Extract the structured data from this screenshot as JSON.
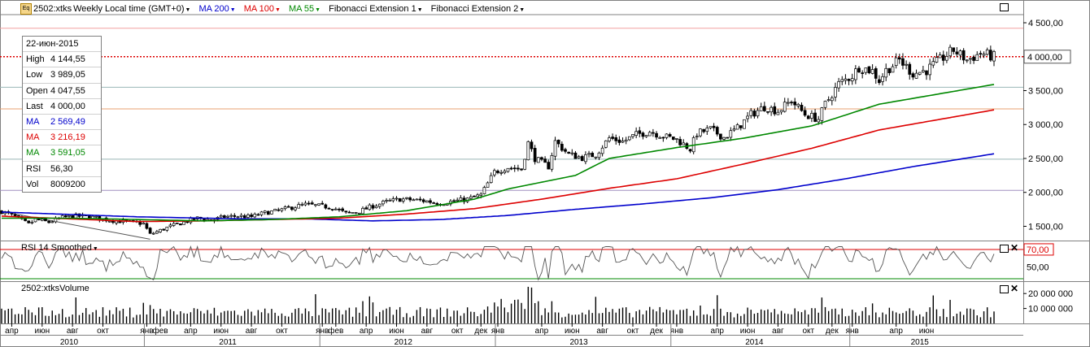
{
  "header": {
    "symbol": "2502:xtks",
    "period": "Weekly",
    "timezone": "Local time (GMT+0)",
    "indicators": [
      {
        "label": "MA 200",
        "color": "#0000cc"
      },
      {
        "label": "MA 100",
        "color": "#dd0000"
      },
      {
        "label": "MA 55",
        "color": "#008800"
      },
      {
        "label": "Fibonacci Extension 1",
        "color": "#000000"
      },
      {
        "label": "Fibonacci Extension 2",
        "color": "#000000"
      }
    ]
  },
  "infobox": {
    "date": "22-июн-2015",
    "rows": [
      {
        "label": "High",
        "value": "4 144,55",
        "color": "#000000"
      },
      {
        "label": "Low",
        "value": "3 989,05",
        "color": "#000000"
      },
      {
        "label": "Open",
        "value": "4 047,55",
        "color": "#000000"
      },
      {
        "label": "Last",
        "value": "4 000,00",
        "color": "#000000"
      },
      {
        "label": "MA",
        "value": "2 569,49",
        "color": "#0000cc"
      },
      {
        "label": "MA",
        "value": "3 216,19",
        "color": "#dd0000"
      },
      {
        "label": "MA",
        "value": "3 591,05",
        "color": "#008800"
      },
      {
        "label": "RSI",
        "value": "56,30",
        "color": "#000000"
      },
      {
        "label": "Vol",
        "value": "8009200",
        "color": "#000000"
      }
    ]
  },
  "panels": {
    "rsi_title": "RSI 14 Smoothed",
    "volume_title": "2502:xtksVolume"
  },
  "chart_data": {
    "type": "candlestick",
    "frequency": "weekly",
    "price_axis": {
      "ticks": [
        1500,
        2000,
        2500,
        3000,
        3500,
        4000,
        4500
      ],
      "tick_labels": [
        "1 500,00",
        "2 000,00",
        "2 500,00",
        "3 000,00",
        "3 500,00",
        "4 000,00",
        "4 500,00"
      ],
      "range": [
        1290,
        4620
      ],
      "last_price_label": "4 000,00",
      "last_price": 4000
    },
    "fibonacci_levels": [
      {
        "value": 4420,
        "color": "#f4a0a0"
      },
      {
        "value": 3550,
        "color": "#9ab8b8"
      },
      {
        "value": 3230,
        "color": "#e8a070"
      },
      {
        "value": 2490,
        "color": "#9ab8b8"
      },
      {
        "value": 2030,
        "color": "#a090c0"
      }
    ],
    "fibonacci_trendline": [
      [
        0,
        1720
      ],
      [
        44,
        1310
      ]
    ],
    "price_anchors": [
      [
        0,
        1720
      ],
      [
        4,
        1640
      ],
      [
        8,
        1530
      ],
      [
        10,
        1600
      ],
      [
        14,
        1560
      ],
      [
        18,
        1630
      ],
      [
        22,
        1650
      ],
      [
        26,
        1640
      ],
      [
        32,
        1590
      ],
      [
        38,
        1560
      ],
      [
        42,
        1540
      ],
      [
        44,
        1380
      ],
      [
        46,
        1420
      ],
      [
        50,
        1500
      ],
      [
        54,
        1560
      ],
      [
        58,
        1620
      ],
      [
        62,
        1590
      ],
      [
        66,
        1640
      ],
      [
        70,
        1650
      ],
      [
        74,
        1640
      ],
      [
        78,
        1700
      ],
      [
        82,
        1730
      ],
      [
        86,
        1780
      ],
      [
        90,
        1820
      ],
      [
        94,
        1800
      ],
      [
        98,
        1780
      ],
      [
        102,
        1690
      ],
      [
        106,
        1720
      ],
      [
        110,
        1800
      ],
      [
        114,
        1860
      ],
      [
        118,
        1900
      ],
      [
        122,
        1890
      ],
      [
        126,
        1870
      ],
      [
        130,
        1840
      ],
      [
        134,
        1870
      ],
      [
        138,
        1900
      ],
      [
        142,
        1960
      ],
      [
        146,
        2300
      ],
      [
        150,
        2370
      ],
      [
        154,
        2340
      ],
      [
        156,
        2730
      ],
      [
        158,
        2500
      ],
      [
        162,
        2380
      ],
      [
        164,
        2750
      ],
      [
        168,
        2560
      ],
      [
        172,
        2510
      ],
      [
        176,
        2560
      ],
      [
        180,
        2800
      ],
      [
        184,
        2750
      ],
      [
        188,
        2850
      ],
      [
        192,
        2900
      ],
      [
        196,
        2830
      ],
      [
        200,
        2780
      ],
      [
        204,
        2640
      ],
      [
        206,
        2870
      ],
      [
        210,
        2930
      ],
      [
        214,
        2810
      ],
      [
        218,
        2950
      ],
      [
        222,
        3150
      ],
      [
        226,
        3260
      ],
      [
        230,
        3200
      ],
      [
        234,
        3350
      ],
      [
        238,
        3150
      ],
      [
        242,
        3080
      ],
      [
        244,
        3300
      ],
      [
        248,
        3600
      ],
      [
        252,
        3720
      ],
      [
        254,
        3850
      ],
      [
        258,
        3790
      ],
      [
        260,
        3650
      ],
      [
        262,
        3800
      ],
      [
        266,
        3950
      ],
      [
        270,
        3750
      ],
      [
        274,
        3800
      ],
      [
        278,
        3950
      ],
      [
        282,
        4100
      ],
      [
        286,
        3950
      ],
      [
        290,
        4050
      ],
      [
        294,
        4000
      ]
    ],
    "moving_averages": [
      {
        "period": 200,
        "color": "#0000cc",
        "last": 2569.49,
        "anchors": [
          [
            0,
            1710
          ],
          [
            40,
            1640
          ],
          [
            70,
            1610
          ],
          [
            90,
            1610
          ],
          [
            110,
            1580
          ],
          [
            130,
            1600
          ],
          [
            150,
            1660
          ],
          [
            170,
            1750
          ],
          [
            190,
            1830
          ],
          [
            210,
            1920
          ],
          [
            230,
            2040
          ],
          [
            250,
            2200
          ],
          [
            270,
            2380
          ],
          [
            294,
            2569
          ]
        ]
      },
      {
        "period": 100,
        "color": "#dd0000",
        "last": 3216.19,
        "anchors": [
          [
            0,
            1650
          ],
          [
            40,
            1570
          ],
          [
            60,
            1580
          ],
          [
            80,
            1600
          ],
          [
            100,
            1620
          ],
          [
            120,
            1680
          ],
          [
            140,
            1760
          ],
          [
            160,
            1900
          ],
          [
            180,
            2060
          ],
          [
            200,
            2200
          ],
          [
            220,
            2420
          ],
          [
            240,
            2650
          ],
          [
            260,
            2920
          ],
          [
            294,
            3216
          ]
        ]
      },
      {
        "period": 55,
        "color": "#008800",
        "last": 3591.05,
        "anchors": [
          [
            0,
            1620
          ],
          [
            20,
            1620
          ],
          [
            40,
            1600
          ],
          [
            60,
            1580
          ],
          [
            80,
            1600
          ],
          [
            100,
            1640
          ],
          [
            120,
            1730
          ],
          [
            140,
            1900
          ],
          [
            150,
            2050
          ],
          [
            170,
            2250
          ],
          [
            180,
            2500
          ],
          [
            200,
            2660
          ],
          [
            220,
            2800
          ],
          [
            240,
            2980
          ],
          [
            260,
            3300
          ],
          [
            294,
            3591
          ]
        ]
      }
    ],
    "rsi": {
      "period": 14,
      "smoothed": true,
      "level_line": 70,
      "level_label": "70,00",
      "tick_label": "50,00",
      "tick": 50,
      "range": [
        25,
        78
      ],
      "last": 56.3
    },
    "volume": {
      "tick_labels": [
        "20 000 000",
        "10 000 000"
      ],
      "ticks": [
        20000000,
        10000000
      ],
      "max": 25000000,
      "last": 8009200
    },
    "month_labels": [
      {
        "label": "апр",
        "week": 3
      },
      {
        "label": "июн",
        "week": 12
      },
      {
        "label": "авг",
        "week": 21
      },
      {
        "label": "окт",
        "week": 30
      },
      {
        "label": "янв",
        "week": 43
      },
      {
        "label": "фев",
        "week": 47
      },
      {
        "label": "апр",
        "week": 56
      },
      {
        "label": "июн",
        "week": 65
      },
      {
        "label": "авг",
        "week": 74
      },
      {
        "label": "окт",
        "week": 83
      },
      {
        "label": "янв",
        "week": 95
      },
      {
        "label": "фев",
        "week": 99
      },
      {
        "label": "апр",
        "week": 108
      },
      {
        "label": "июн",
        "week": 117
      },
      {
        "label": "авг",
        "week": 126
      },
      {
        "label": "окт",
        "week": 135
      },
      {
        "label": "дек",
        "week": 142
      },
      {
        "label": "янв",
        "week": 147
      },
      {
        "label": "апр",
        "week": 160
      },
      {
        "label": "июн",
        "week": 169
      },
      {
        "label": "авг",
        "week": 178
      },
      {
        "label": "окт",
        "week": 187
      },
      {
        "label": "дек",
        "week": 194
      },
      {
        "label": "янв",
        "week": 200
      },
      {
        "label": "апр",
        "week": 212
      },
      {
        "label": "июн",
        "week": 221
      },
      {
        "label": "авг",
        "week": 230
      },
      {
        "label": "окт",
        "week": 239
      },
      {
        "label": "дек",
        "week": 246
      },
      {
        "label": "янв",
        "week": 252
      },
      {
        "label": "апр",
        "week": 265
      },
      {
        "label": "июн",
        "week": 274
      }
    ],
    "year_labels": [
      {
        "label": "2010",
        "week": 20
      },
      {
        "label": "2011",
        "week": 67
      },
      {
        "label": "2012",
        "week": 119
      },
      {
        "label": "2013",
        "week": 171
      },
      {
        "label": "2014",
        "week": 223
      },
      {
        "label": "2015",
        "week": 272
      }
    ],
    "year_separators": [
      43,
      95,
      147,
      199,
      252
    ],
    "week_count": 295
  }
}
